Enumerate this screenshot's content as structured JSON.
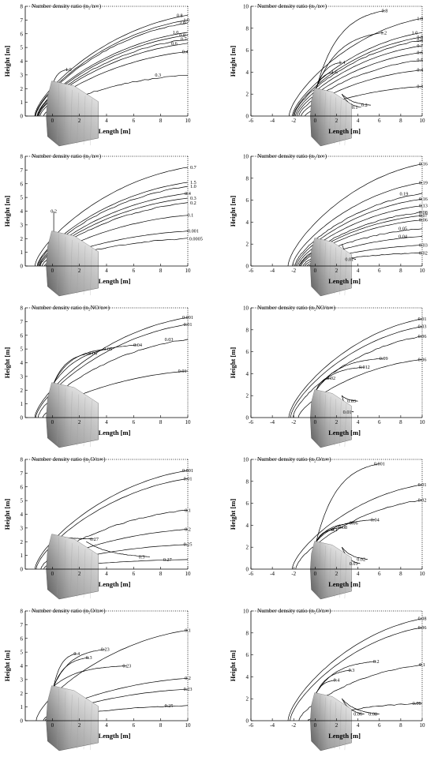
{
  "chart_data": [
    {
      "type": "contour",
      "title": "Number density ratio (n₂/n∞)",
      "xlabel": "Length [m]",
      "ylabel": "Height [m]",
      "xlim": [
        -2,
        10
      ],
      "ylim": [
        0,
        8
      ],
      "xticks": [
        "0",
        "2",
        "4",
        "6",
        "8",
        "10"
      ],
      "yticks": [
        "0",
        "1",
        "2",
        "3",
        "4",
        "5",
        "6",
        "7",
        "8"
      ],
      "contour_labels": [
        "0.8",
        "1.0",
        "2.0",
        "1.0",
        "0.8",
        "0.7",
        "0.6",
        "0.4",
        "0.3",
        "1.0"
      ],
      "label_x": [
        9.4,
        9.9,
        9.6,
        9.1,
        9.6,
        9.7,
        9.0,
        9.8,
        7.8,
        1.2
      ],
      "label_y": [
        7.35,
        7.0,
        6.8,
        6.1,
        5.9,
        5.6,
        5.3,
        4.7,
        3.0,
        3.4
      ]
    },
    {
      "type": "contour",
      "title": "Number density ratio (n₂/n∞)",
      "xlabel": "Length [m]",
      "ylabel": "Height [m]",
      "xlim": [
        -6,
        10
      ],
      "ylim": [
        0,
        10
      ],
      "xticks": [
        "-6",
        "-4",
        "-2",
        "0",
        "2",
        "4",
        "6",
        "8",
        "10"
      ],
      "yticks": [
        "0",
        "2",
        "4",
        "6",
        "8",
        "10"
      ],
      "contour_labels": [
        "0.8",
        "1.0",
        "1.2",
        "1.0",
        "0.9",
        "0.8",
        "0.7",
        "0.6",
        "0.5",
        "0.4",
        "0.3",
        "1.4",
        "1.6",
        "0.2",
        "0.1"
      ],
      "label_x": [
        6.5,
        9.8,
        6.4,
        9.3,
        9.8,
        9.8,
        9.8,
        9.8,
        9.8,
        9.8,
        9.8,
        2.5,
        1.8,
        4.6,
        3.7
      ],
      "label_y": [
        9.6,
        8.9,
        7.6,
        7.6,
        7.2,
        6.9,
        6.4,
        5.8,
        5.1,
        4.2,
        2.7,
        4.9,
        4.0,
        1.0,
        0.8
      ]
    },
    {
      "type": "contour",
      "title": "Number density ratio (n₂/n∞)",
      "xlabel": "Length [m]",
      "ylabel": "Height [m]",
      "xlim": [
        -2,
        10
      ],
      "ylim": [
        0,
        8
      ],
      "xticks": [
        "0",
        "2",
        "4",
        "6",
        "8",
        "10"
      ],
      "yticks": [
        "0",
        "1",
        "2",
        "3",
        "4",
        "5",
        "6",
        "7",
        "8"
      ],
      "contour_labels": [
        "0.7",
        "1.5",
        "1.0",
        "0.4",
        "0.3",
        "0.2",
        "0.1",
        "0.001",
        "0.0005",
        "0.2"
      ],
      "label_x": [
        10.4,
        10.4,
        10.4,
        10.0,
        10.4,
        10.4,
        10.2,
        10.4,
        10.6,
        0.1
      ],
      "label_y": [
        7.2,
        6.1,
        5.8,
        5.3,
        4.95,
        4.6,
        3.7,
        2.55,
        2.0,
        4.0
      ]
    },
    {
      "type": "contour",
      "title": "Number density ratio (n₂/n∞)",
      "xlabel": "Length [m]",
      "ylabel": "Height [m]",
      "xlim": [
        -6,
        10
      ],
      "ylim": [
        0,
        10
      ],
      "xticks": [
        "-6",
        "-4",
        "-2",
        "0",
        "2",
        "4",
        "6",
        "8",
        "10"
      ],
      "yticks": [
        "0",
        "2",
        "4",
        "6",
        "8",
        "10"
      ],
      "contour_labels": [
        "0.16",
        "0.19",
        "0.19",
        "0.16",
        "0.13",
        "0.08",
        "0.07",
        "0.06",
        "0.05",
        "0.04",
        "0.03",
        "0.02",
        "0.01"
      ],
      "label_x": [
        10.1,
        10.1,
        8.3,
        10.1,
        10.1,
        10.1,
        10.1,
        10.1,
        8.2,
        8.2,
        10.1,
        10.1,
        3.2
      ],
      "label_y": [
        9.3,
        7.6,
        6.6,
        6.1,
        5.5,
        4.9,
        4.6,
        4.2,
        3.4,
        2.7,
        1.9,
        1.2,
        0.6
      ]
    },
    {
      "type": "contour",
      "title": "Number density ratio (n₂NO/n∞)",
      "xlabel": "Length [m]",
      "ylabel": "Height [m]",
      "xlim": [
        -2,
        10
      ],
      "ylim": [
        0,
        8
      ],
      "xticks": [
        "0",
        "2",
        "4",
        "6",
        "8",
        "10"
      ],
      "yticks": [
        "0",
        "1",
        "2",
        "3",
        "4",
        "5",
        "6",
        "7",
        "8"
      ],
      "contour_labels": [
        "0.001",
        "0.01",
        "0.03",
        "0.04",
        "0.05",
        "0.06",
        "0.01"
      ],
      "label_x": [
        10.0,
        10.0,
        8.6,
        6.3,
        4.1,
        3.0,
        9.6
      ],
      "label_y": [
        7.3,
        6.8,
        5.7,
        5.3,
        5.0,
        4.7,
        3.4
      ]
    },
    {
      "type": "contour",
      "title": "Number density ratio (n₂NO/n∞)",
      "xlabel": "Length [m]",
      "ylabel": "Height [m]",
      "xlim": [
        -6,
        10
      ],
      "ylim": [
        0,
        10
      ],
      "xticks": [
        "-6",
        "-4",
        "-2",
        "0",
        "2",
        "4",
        "6",
        "8",
        "10"
      ],
      "yticks": [
        "0",
        "2",
        "4",
        "6",
        "8",
        "10"
      ],
      "contour_labels": [
        "0.01",
        "0.03",
        "0.06",
        "0.09",
        "0.012",
        "0.02",
        "0.06",
        "0.03",
        "0.01"
      ],
      "label_x": [
        10.0,
        10.0,
        10.0,
        6.4,
        4.6,
        1.5,
        10.0,
        3.4,
        3.0
      ],
      "label_y": [
        9.0,
        8.3,
        7.4,
        5.4,
        4.6,
        3.6,
        5.3,
        1.5,
        0.5
      ]
    },
    {
      "type": "contour",
      "title": "Number density ratio (n₂O/n∞)",
      "xlabel": "Length [m]",
      "ylabel": "Height [m]",
      "xlim": [
        -2,
        10
      ],
      "ylim": [
        0,
        8
      ],
      "xticks": [
        "0",
        "2",
        "4",
        "6",
        "8",
        "10"
      ],
      "yticks": [
        "0",
        "1",
        "2",
        "3",
        "4",
        "5",
        "6",
        "7",
        "8"
      ],
      "contour_labels": [
        "0.001",
        "0.01",
        "0.1",
        "0.2",
        "0.25",
        "0.27",
        "0.3",
        "0.27"
      ],
      "label_x": [
        10.0,
        10.0,
        10.0,
        10.0,
        10.0,
        3.1,
        6.6,
        8.5
      ],
      "label_y": [
        7.2,
        6.6,
        4.3,
        2.9,
        1.8,
        2.2,
        0.9,
        0.7
      ]
    },
    {
      "type": "contour",
      "title": "Number density ratio (n₂O/n∞)",
      "xlabel": "Length [m]",
      "ylabel": "Height [m]",
      "xlim": [
        -6,
        10
      ],
      "ylim": [
        0,
        10
      ],
      "xticks": [
        "-6",
        "-4",
        "-2",
        "0",
        "2",
        "4",
        "6",
        "8",
        "10"
      ],
      "yticks": [
        "0",
        "2",
        "4",
        "6",
        "8",
        "10"
      ],
      "contour_labels": [
        "0.001",
        "0.01",
        "0.02",
        "0.04",
        "0.06",
        "0.08",
        "0.1",
        "0.02",
        "0.01"
      ],
      "label_x": [
        6.0,
        10.0,
        10.0,
        5.6,
        3.6,
        2.6,
        1.8,
        4.3,
        3.6
      ],
      "label_y": [
        9.6,
        7.7,
        6.3,
        4.5,
        4.2,
        3.8,
        3.6,
        0.9,
        0.5
      ]
    },
    {
      "type": "contour",
      "title": "Number density ratio (n₂O/n∞)",
      "xlabel": "Length [m]",
      "ylabel": "Height [m]",
      "xlim": [
        -2,
        10
      ],
      "ylim": [
        0,
        8
      ],
      "xticks": [
        "0",
        "2",
        "4",
        "6",
        "8",
        "10"
      ],
      "yticks": [
        "0",
        "1",
        "2",
        "3",
        "4",
        "5",
        "6",
        "7",
        "8"
      ],
      "contour_labels": [
        "0.1",
        "0.23",
        "0.23",
        "0.2",
        "0.23",
        "0.25",
        "0.4",
        "0.3"
      ],
      "label_x": [
        10.0,
        3.9,
        5.5,
        10.0,
        10.0,
        8.6,
        1.8,
        2.7
      ],
      "label_y": [
        6.6,
        5.2,
        4.0,
        3.1,
        2.3,
        1.1,
        4.9,
        4.6
      ]
    },
    {
      "type": "contour",
      "title": "Number density ratio (n₂O/n∞)",
      "xlabel": "Length [m]",
      "ylabel": "Height [m]",
      "xlim": [
        -6,
        10
      ],
      "ylim": [
        0,
        10
      ],
      "xticks": [
        "-6",
        "-4",
        "-2",
        "0",
        "2",
        "4",
        "6",
        "8",
        "10"
      ],
      "yticks": [
        "0",
        "2",
        "4",
        "6",
        "8",
        "10"
      ],
      "contour_labels": [
        "0.08",
        "0.06",
        "0.1",
        "0.2",
        "0.3",
        "0.4",
        "0.08",
        "0.06",
        "0.08"
      ],
      "label_x": [
        10.0,
        10.0,
        10.0,
        5.7,
        3.4,
        2.0,
        5.4,
        4.0,
        9.5
      ],
      "label_y": [
        9.3,
        8.5,
        5.1,
        5.4,
        4.6,
        3.7,
        0.6,
        0.6,
        1.6
      ]
    }
  ]
}
